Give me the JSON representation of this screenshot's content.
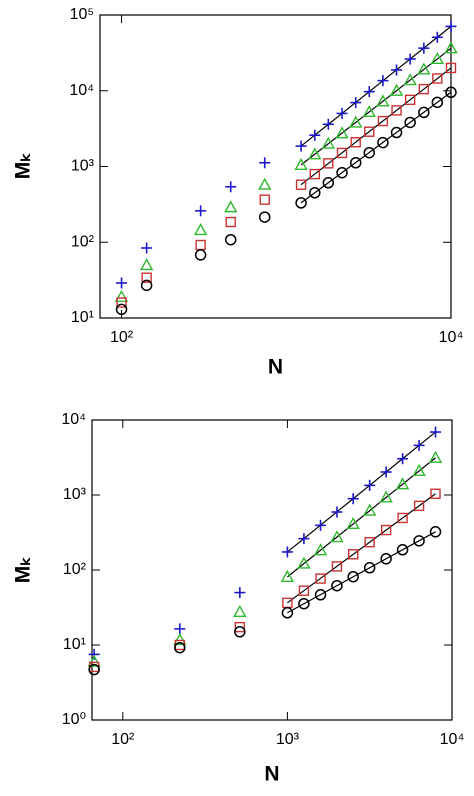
{
  "chart_data": [
    {
      "type": "scatter",
      "xlabel": "N",
      "ylabel": "Mₖ",
      "log_x": true,
      "log_y": true,
      "xlim": [
        74,
        10000
      ],
      "ylim": [
        10,
        100000
      ],
      "xticks": [
        {
          "value": 100,
          "label": "10²"
        },
        {
          "value": 10000,
          "label": "10⁴"
        }
      ],
      "yticks": [
        {
          "value": 10,
          "label": "10¹"
        },
        {
          "value": 100,
          "label": "10²"
        },
        {
          "value": 1000,
          "label": "10³"
        },
        {
          "value": 10000,
          "label": "10⁴"
        },
        {
          "value": 100000,
          "label": "10⁵"
        }
      ],
      "x": [
        100,
        142,
        302,
        460,
        740,
        1230,
        1490,
        1800,
        2180,
        2640,
        3190,
        3860,
        4670,
        5650,
        6840,
        8260,
        10000
      ],
      "fit_x": [
        1230,
        10000
      ],
      "series": [
        {
          "marker": "plus",
          "color": "#1a1acc",
          "values": [
            29,
            84,
            260,
            540,
            1120,
            1860,
            2590,
            3610,
            5020,
            6980,
            9730,
            13600,
            18800,
            26200,
            36500,
            50800,
            70800
          ],
          "fit_values": [
            1860,
            70800
          ]
        },
        {
          "marker": "triangle",
          "color": "#2db82d",
          "values": [
            19,
            50,
            145,
            290,
            575,
            1050,
            1450,
            2000,
            2750,
            3800,
            5250,
            7240,
            10000,
            13800,
            19100,
            26300,
            36300
          ],
          "fit_values": [
            1050,
            36300
          ]
        },
        {
          "marker": "square",
          "color": "#c83232",
          "values": [
            16,
            34,
            92,
            185,
            365,
            575,
            794,
            1100,
            1510,
            2090,
            2880,
            3980,
            5500,
            7590,
            10500,
            14500,
            20000
          ],
          "fit_values": [
            575,
            20000
          ]
        },
        {
          "marker": "circle",
          "color": "#000000",
          "values": [
            13,
            27,
            68,
            108,
            215,
            331,
            450,
            610,
            828,
            1120,
            1520,
            2070,
            2810,
            3810,
            5180,
            7030,
            9550
          ],
          "fit_values": [
            331,
            9550
          ]
        }
      ]
    },
    {
      "type": "scatter",
      "xlabel": "N",
      "ylabel": "Mₖ",
      "log_x": true,
      "log_y": true,
      "xlim": [
        65,
        10000
      ],
      "ylim": [
        1,
        10000
      ],
      "xticks": [
        {
          "value": 100,
          "label": "10²"
        },
        {
          "value": 1000,
          "label": "10³"
        },
        {
          "value": 10000,
          "label": "10⁴"
        }
      ],
      "yticks": [
        {
          "value": 1,
          "label": "10⁰"
        },
        {
          "value": 10,
          "label": "10¹"
        },
        {
          "value": 100,
          "label": "10²"
        },
        {
          "value": 1000,
          "label": "10³"
        },
        {
          "value": 10000,
          "label": "10⁴"
        }
      ],
      "x": [
        67,
        222,
        514,
        1000,
        1260,
        1590,
        2000,
        2510,
        3160,
        3980,
        5010,
        6310,
        7940
      ],
      "fit_x": [
        1000,
        7940
      ],
      "series": [
        {
          "marker": "plus",
          "color": "#1a1acc",
          "values": [
            7.5,
            16.4,
            50,
            174,
            262,
            394,
            593,
            893,
            1344,
            2026,
            3045,
            4587,
            6911
          ],
          "fit_values": [
            174,
            6911
          ]
        },
        {
          "marker": "triangle",
          "color": "#2db82d",
          "values": [
            6.0,
            11.7,
            27.6,
            81,
            122,
            183,
            274,
            412,
            619,
            928,
            1392,
            2092,
            3137
          ],
          "fit_values": [
            81,
            3137
          ]
        },
        {
          "marker": "square",
          "color": "#c83232",
          "values": [
            5.1,
            10,
            17.3,
            36.5,
            53,
            76.8,
            111.6,
            162,
            235,
            341,
            494,
            717,
            1039
          ],
          "fit_values": [
            36.5,
            1039
          ]
        },
        {
          "marker": "circle",
          "color": "#000000",
          "values": [
            4.7,
            9.2,
            15,
            26.9,
            35.5,
            46.7,
            61.7,
            81.3,
            107,
            141,
            186,
            245,
            323
          ],
          "fit_values": [
            26.9,
            323
          ]
        }
      ]
    }
  ]
}
